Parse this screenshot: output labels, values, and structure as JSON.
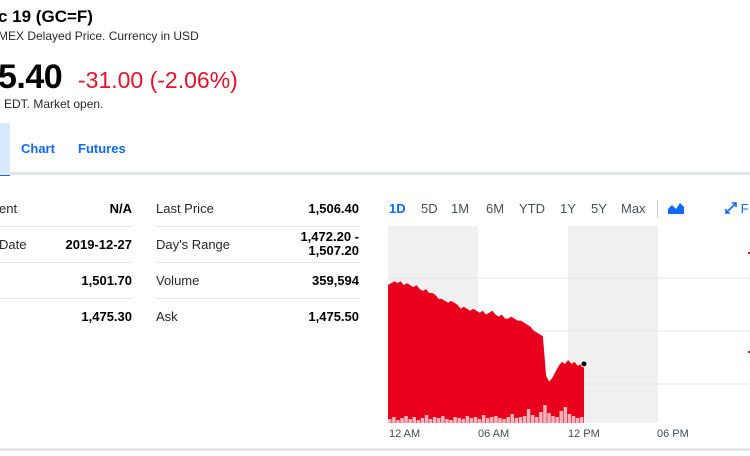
{
  "header": {
    "title": "c 19 (GC=F)",
    "subtitle": "MEX Delayed Price. Currency in USD",
    "price": "5.40",
    "change": "-31.00 (-2.06%)",
    "market_note": "EDT. Market open."
  },
  "tabs": [
    {
      "label": "Chart"
    },
    {
      "label": "Futures"
    }
  ],
  "stats_left": [
    {
      "label": "ent",
      "value": "N/A"
    },
    {
      "label": "Date",
      "value": "2019-12-27"
    },
    {
      "label": "",
      "value": "1,501.70"
    },
    {
      "label": "",
      "value": "1,475.30"
    }
  ],
  "stats_right": [
    {
      "label": "Last Price",
      "value": "1,506.40"
    },
    {
      "label": "Day's Range",
      "value": "1,472.20 - 1,507.20"
    },
    {
      "label": "Volume",
      "value": "359,594"
    },
    {
      "label": "Ask",
      "value": "1,475.50"
    }
  ],
  "chart_controls": {
    "ranges": [
      "1D",
      "5D",
      "1M",
      "6M",
      "YTD",
      "1Y",
      "5Y",
      "Max"
    ],
    "active_range": "1D",
    "chart_type_icon": "mountain-chart-icon",
    "expand_label": "F",
    "expand_icon": "expand-icon"
  },
  "chart_data": {
    "type": "area",
    "title": "",
    "xlabel": "",
    "ylabel": "",
    "x_ticks": [
      "12 AM",
      "06 AM",
      "12 PM",
      "06 PM"
    ],
    "series": [
      {
        "values": [
          0.7,
          0.71,
          0.72,
          0.71,
          0.72,
          0.7,
          0.71,
          0.7,
          0.69,
          0.7,
          0.68,
          0.67,
          0.68,
          0.66,
          0.66,
          0.65,
          0.63,
          0.63,
          0.62,
          0.61,
          0.62,
          0.61,
          0.6,
          0.58,
          0.59,
          0.58,
          0.57,
          0.58,
          0.57,
          0.56,
          0.57,
          0.55,
          0.56,
          0.57,
          0.55,
          0.54,
          0.55,
          0.53,
          0.53,
          0.54,
          0.53,
          0.52,
          0.52,
          0.51,
          0.5,
          0.49,
          0.47,
          0.46,
          0.45,
          0.44,
          0.24,
          0.21,
          0.23,
          0.26,
          0.29,
          0.31,
          0.3,
          0.32,
          0.3,
          0.31,
          0.29,
          0.3,
          0.3
        ]
      }
    ],
    "colors": {
      "area": "#e8001c",
      "volume": "#f6b5bd"
    },
    "shaded_sessions": [
      "12 AM-06 AM",
      "12 PM-06 PM"
    ]
  }
}
